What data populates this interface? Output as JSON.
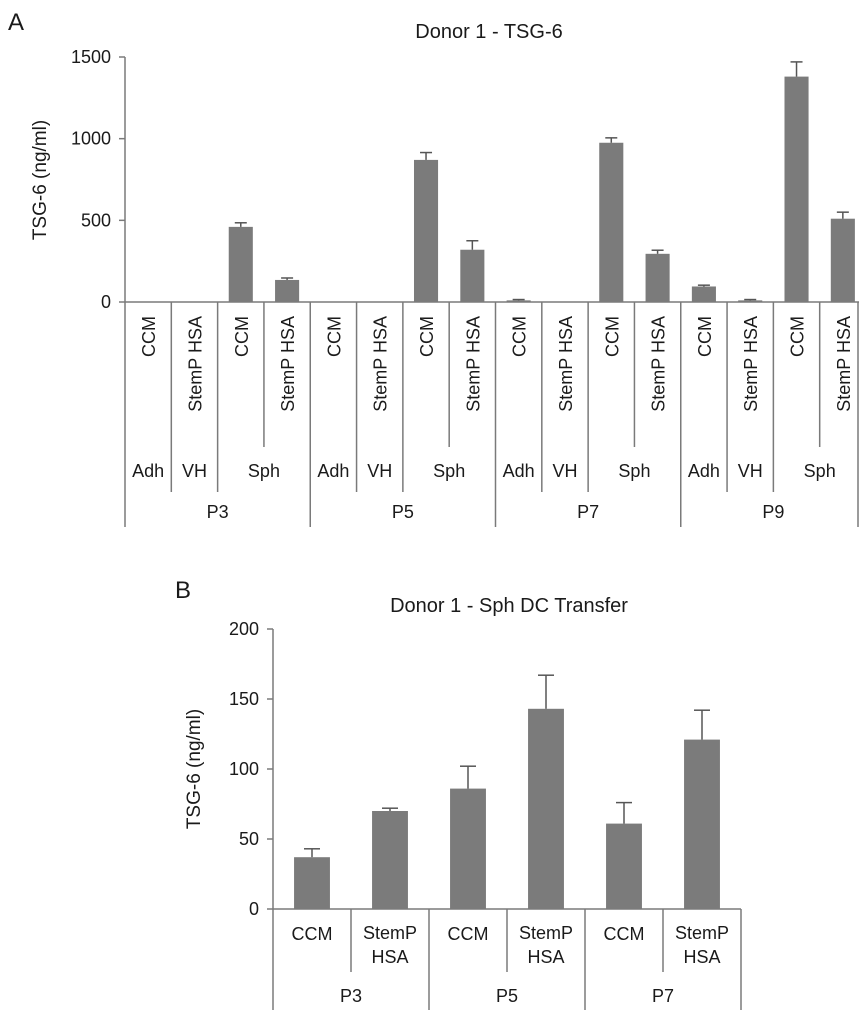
{
  "colors": {
    "bar": "#7b7b7b",
    "axis": "#7a7a7a",
    "error": "#555555"
  },
  "chart_data": [
    {
      "panel": "A",
      "type": "bar",
      "title": "Donor 1 - TSG-6",
      "ylabel": "TSG-6 (ng/ml)",
      "ylim": [
        0,
        1500
      ],
      "yticks": [
        "0",
        "500",
        "1000",
        "1500"
      ],
      "categories": [
        "CCM",
        "StemP HSA",
        "CCM",
        "StemP HSA",
        "CCM",
        "StemP HSA",
        "CCM",
        "StemP HSA",
        "CCM",
        "StemP HSA",
        "CCM",
        "StemP HSA",
        "CCM",
        "StemP HSA",
        "CCM",
        "StemP HSA"
      ],
      "values": [
        0,
        0,
        460,
        135,
        0,
        0,
        870,
        320,
        10,
        0,
        975,
        295,
        95,
        10,
        1380,
        510
      ],
      "errors": [
        0,
        0,
        25,
        12,
        0,
        0,
        45,
        55,
        5,
        0,
        30,
        22,
        8,
        5,
        90,
        40
      ],
      "subgroups": [
        {
          "label": "Adh",
          "span": 1
        },
        {
          "label": "VH",
          "span": 1
        },
        {
          "label": "Sph",
          "span": 2
        },
        {
          "label": "Adh",
          "span": 1
        },
        {
          "label": "VH",
          "span": 1
        },
        {
          "label": "Sph",
          "span": 2
        },
        {
          "label": "Adh",
          "span": 1
        },
        {
          "label": "VH",
          "span": 1
        },
        {
          "label": "Sph",
          "span": 2
        },
        {
          "label": "Adh",
          "span": 1
        },
        {
          "label": "VH",
          "span": 1
        },
        {
          "label": "Sph",
          "span": 2
        }
      ],
      "groups": [
        {
          "label": "P3",
          "span": 4
        },
        {
          "label": "P5",
          "span": 4
        },
        {
          "label": "P7",
          "span": 4
        },
        {
          "label": "P9",
          "span": 4
        }
      ],
      "grid": false,
      "legend": "none"
    },
    {
      "panel": "B",
      "type": "bar",
      "title": "Donor 1 - Sph DC Transfer",
      "ylabel": "TSG-6 (ng/ml)",
      "ylim": [
        0,
        200
      ],
      "yticks": [
        "0",
        "50",
        "100",
        "150",
        "200"
      ],
      "categories": [
        "CCM",
        "StemP HSA",
        "CCM",
        "StemP HSA",
        "CCM",
        "StemP HSA"
      ],
      "values": [
        37,
        70,
        86,
        143,
        61,
        121
      ],
      "errors": [
        6,
        2,
        16,
        24,
        15,
        21
      ],
      "groups": [
        {
          "label": "P3",
          "span": 2
        },
        {
          "label": "P5",
          "span": 2
        },
        {
          "label": "P7",
          "span": 2
        }
      ],
      "grid": false,
      "legend": "none"
    }
  ]
}
